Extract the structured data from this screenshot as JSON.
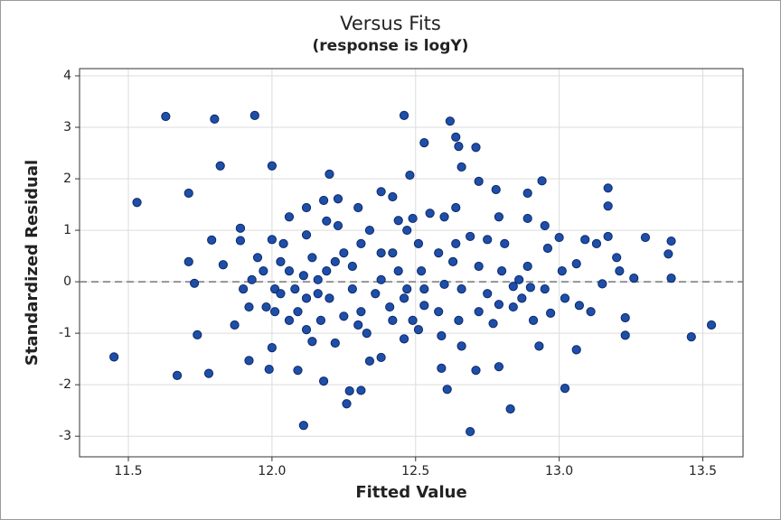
{
  "chart_data": {
    "type": "scatter",
    "title": "Versus Fits",
    "subtitle": "(response is logY)",
    "x_label": "Fitted Value",
    "y_label": "Standardized Residual",
    "xlim": [
      11.33,
      13.64
    ],
    "ylim": [
      -3.4,
      4.14
    ],
    "xticks": [
      11.5,
      {
        "value": 12.0,
        "label": "12.0"
      },
      12.5,
      {
        "value": 13.0,
        "label": "13.0"
      },
      13.5
    ],
    "yticks": [
      -3,
      -2,
      -1,
      0,
      1,
      2,
      3,
      4
    ],
    "grid": true,
    "reference_line": 0,
    "color": "#1f4ea8",
    "x": [
      11.45,
      11.53,
      11.63,
      11.67,
      11.71,
      11.71,
      11.73,
      11.74,
      11.79,
      11.78,
      11.8,
      11.82,
      11.83,
      11.94,
      11.89,
      11.89,
      11.92,
      11.9,
      11.99,
      12.0,
      12.09,
      12.11,
      12.18,
      12.2,
      12.26,
      12.27,
      12.31,
      12.46,
      12.53,
      12.48,
      12.62,
      12.64,
      12.65,
      12.71,
      12.66,
      12.61,
      12.69,
      12.83,
      12.72,
      12.78,
      12.89,
      12.94,
      13.02,
      13.17,
      13.17,
      13.3,
      13.39,
      13.38,
      13.39,
      13.46,
      13.53,
      13.15,
      13.23,
      13.23,
      13.26,
      13.06,
      13.17,
      13.09,
      13.06,
      13.0,
      12.93,
      13.02,
      12.97,
      12.9,
      12.86,
      12.84,
      12.79,
      12.77,
      12.79,
      12.71,
      12.66,
      12.59,
      12.59,
      12.53,
      12.49,
      12.46,
      12.38,
      12.34,
      12.33,
      12.38,
      12.42,
      12.38,
      12.42,
      12.44,
      12.49,
      12.55,
      12.6,
      12.64,
      12.64,
      12.69,
      12.75,
      12.81,
      12.79,
      12.89,
      12.95,
      12.96,
      12.89,
      12.72,
      12.66,
      12.6,
      12.52,
      12.44,
      12.46,
      12.41,
      12.31,
      12.3,
      12.25,
      12.2,
      12.16,
      12.12,
      12.09,
      12.06,
      12.03,
      12.01,
      11.98,
      11.97,
      12.04,
      12.06,
      12.12,
      12.19,
      12.23,
      12.25,
      12.22,
      12.19,
      12.28,
      12.31,
      12.34,
      12.3,
      12.23,
      12.18,
      12.12,
      12.14,
      12.11,
      12.16,
      12.17,
      12.12,
      12.06,
      12.01,
      12.0,
      12.14,
      12.22,
      12.36,
      12.53,
      12.75,
      12.95,
      13.01,
      13.07,
      13.11,
      13.21,
      13.2,
      13.13,
      12.91,
      12.72,
      12.65,
      12.58,
      12.51,
      12.42,
      12.51,
      12.47,
      12.58,
      12.63,
      11.87,
      11.92,
      11.93,
      11.95,
      12.0,
      12.03,
      12.08,
      12.28,
      12.38,
      12.47,
      12.8,
      12.87,
      12.84
    ],
    "y": [
      -1.46,
      1.54,
      3.21,
      -1.82,
      1.72,
      0.39,
      -0.03,
      -1.03,
      0.81,
      -1.78,
      3.16,
      2.25,
      0.33,
      3.23,
      1.04,
      0.8,
      -1.53,
      -0.14,
      -1.7,
      2.25,
      -1.72,
      -2.79,
      -1.93,
      2.09,
      -2.37,
      -2.12,
      -2.11,
      3.23,
      2.7,
      2.07,
      3.12,
      2.81,
      2.63,
      2.61,
      2.23,
      -2.09,
      -2.91,
      -2.47,
      1.95,
      1.79,
      1.72,
      1.96,
      -2.07,
      1.82,
      1.47,
      0.86,
      0.79,
      0.54,
      0.07,
      -1.07,
      -0.84,
      -0.04,
      -0.7,
      -1.04,
      0.07,
      -1.32,
      0.88,
      0.82,
      0.35,
      0.86,
      -1.25,
      -0.32,
      -0.61,
      -0.11,
      0.04,
      -0.09,
      -0.44,
      -0.81,
      -1.65,
      -1.72,
      -1.25,
      -1.68,
      -1.05,
      -0.46,
      -0.75,
      -1.11,
      -1.47,
      -1.54,
      -1.0,
      0.04,
      0.56,
      1.75,
      1.65,
      1.19,
      1.23,
      1.33,
      1.26,
      1.44,
      0.74,
      0.88,
      0.82,
      0.74,
      1.26,
      1.23,
      1.09,
      0.65,
      0.3,
      0.3,
      -0.14,
      -0.05,
      0.21,
      0.21,
      -0.32,
      -0.49,
      -0.58,
      -0.84,
      -0.67,
      -0.32,
      0.04,
      -0.32,
      -0.58,
      0.21,
      0.39,
      -0.14,
      -0.49,
      0.21,
      0.74,
      1.26,
      0.91,
      1.18,
      1.09,
      0.56,
      0.39,
      0.21,
      0.3,
      0.74,
      1.0,
      1.44,
      1.61,
      1.58,
      1.44,
      0.47,
      0.12,
      -0.23,
      -0.75,
      -0.93,
      -0.75,
      -0.58,
      -1.28,
      -1.16,
      -1.19,
      -0.23,
      -0.14,
      -0.23,
      -0.14,
      0.21,
      -0.46,
      -0.58,
      0.21,
      0.47,
      0.74,
      -0.75,
      -0.58,
      -0.75,
      -0.58,
      -0.93,
      -0.75,
      0.74,
      1.0,
      0.56,
      0.39,
      -0.84,
      -0.49,
      0.04,
      0.47,
      0.82,
      -0.23,
      -0.14,
      -0.14,
      0.56,
      -0.14,
      0.21,
      -0.32,
      -0.49
    ]
  }
}
